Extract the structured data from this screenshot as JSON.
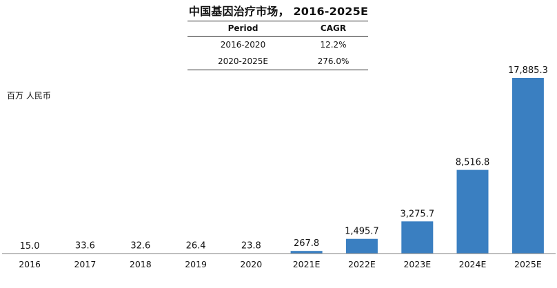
{
  "title": "中国基因治疗市场， 2016-2025E",
  "unit_label": "百万 人民币",
  "cagr_table": {
    "headers": [
      "Period",
      "CAGR"
    ],
    "rows": [
      [
        "2016-2020",
        "12.2%"
      ],
      [
        "2020-2025E",
        "276.0%"
      ]
    ]
  },
  "colors": {
    "bar": "#3a7fc1",
    "axis": "#7f7f7f"
  },
  "chart_data": {
    "type": "bar",
    "categories": [
      "2016",
      "2017",
      "2018",
      "2019",
      "2020",
      "2021E",
      "2022E",
      "2023E",
      "2024E",
      "2025E"
    ],
    "values": [
      15.0,
      33.6,
      32.6,
      26.4,
      23.8,
      267.8,
      1495.7,
      3275.7,
      8516.8,
      17885.3
    ],
    "data_labels": [
      "15.0",
      "33.6",
      "32.6",
      "26.4",
      "23.8",
      "267.8",
      "1,495.7",
      "3,275.7",
      "8,516.8",
      "17,885.3"
    ],
    "ylim": [
      0,
      17885.3
    ],
    "grid": false,
    "legend": "none"
  }
}
